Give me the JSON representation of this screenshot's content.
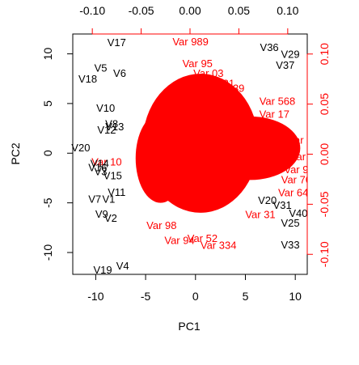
{
  "chart_data": {
    "type": "scatter",
    "plot": "biplot",
    "title": "",
    "xlabel": "PC1",
    "ylabel": "PC2",
    "xlim": [
      -12.3,
      11.2
    ],
    "ylim": [
      -12.2,
      12.0
    ],
    "x_ticks": [
      "-10",
      "-5",
      "0",
      "5",
      "10"
    ],
    "x_tick_values": [
      -10,
      -5,
      0,
      5,
      10
    ],
    "y_ticks": [
      "-10",
      "-5",
      "0",
      "5",
      "10"
    ],
    "y_tick_values": [
      -10,
      -5,
      0,
      5,
      10
    ],
    "loading_lim": [
      -0.12,
      0.12
    ],
    "top_ticks": [
      "-0.10",
      "-0.05",
      "0.00",
      "0.05",
      "0.10"
    ],
    "top_tick_values": [
      -0.1,
      -0.05,
      0,
      0.05,
      0.1
    ],
    "right_ticks": [
      "-0.10",
      "-0.05",
      "0.00",
      "0.05",
      "0.10"
    ],
    "right_tick_values": [
      -0.1,
      -0.05,
      0,
      0.05,
      0.1
    ],
    "colors": {
      "observations": "#000000",
      "variables": "#ff0000",
      "axes": "#000000",
      "top_right_axes": "#ff0000"
    },
    "observations": [
      {
        "label": "V17",
        "x": -7.9,
        "y": 11.2
      },
      {
        "label": "V36",
        "x": 7.4,
        "y": 10.7
      },
      {
        "label": "V29",
        "x": 9.5,
        "y": 10.0
      },
      {
        "label": "V37",
        "x": 9.0,
        "y": 8.9
      },
      {
        "label": "V5",
        "x": -9.5,
        "y": 8.6
      },
      {
        "label": "V6",
        "x": -7.6,
        "y": 8.1
      },
      {
        "label": "V18",
        "x": -10.8,
        "y": 7.5
      },
      {
        "label": "V10",
        "x": -9.0,
        "y": 4.6
      },
      {
        "label": "V8",
        "x": -8.4,
        "y": 3.0
      },
      {
        "label": "V13",
        "x": -8.1,
        "y": 2.7
      },
      {
        "label": "V12",
        "x": -8.9,
        "y": 2.4
      },
      {
        "label": "V20",
        "x": -11.5,
        "y": 0.6
      },
      {
        "label": "V14",
        "x": -9.6,
        "y": -1.0
      },
      {
        "label": "V16",
        "x": -9.8,
        "y": -1.4
      },
      {
        "label": "V3",
        "x": -9.5,
        "y": -1.8
      },
      {
        "label": "V15",
        "x": -8.3,
        "y": -2.2
      },
      {
        "label": "V11",
        "x": -7.9,
        "y": -3.9
      },
      {
        "label": "V7",
        "x": -10.1,
        "y": -4.6
      },
      {
        "label": "V1",
        "x": -8.7,
        "y": -4.6
      },
      {
        "label": "V20",
        "x": 7.2,
        "y": -4.7
      },
      {
        "label": "V31",
        "x": 8.7,
        "y": -5.2
      },
      {
        "label": "V9",
        "x": -9.4,
        "y": -6.1
      },
      {
        "label": "V2",
        "x": -8.5,
        "y": -6.5
      },
      {
        "label": "V40",
        "x": 10.3,
        "y": -6.0
      },
      {
        "label": "V25",
        "x": 9.5,
        "y": -7.0
      },
      {
        "label": "V33",
        "x": 9.5,
        "y": -9.2
      },
      {
        "label": "V19",
        "x": -9.3,
        "y": -11.7
      },
      {
        "label": "V4",
        "x": -7.3,
        "y": -11.3
      }
    ],
    "variables": [
      {
        "label": "Var 989",
        "x": -0.5,
        "y": 11.2
      },
      {
        "label": "Var 95",
        "x": 0.2,
        "y": 9.0
      },
      {
        "label": "Var 03",
        "x": 1.3,
        "y": 8.0
      },
      {
        "label": "Var 21",
        "x": 2.4,
        "y": 7.0
      },
      {
        "label": "Var 39",
        "x": 3.4,
        "y": 6.5
      },
      {
        "label": "Var 568",
        "x": 8.2,
        "y": 5.2
      },
      {
        "label": "Var 17",
        "x": 7.9,
        "y": 3.9
      },
      {
        "label": "Var 5",
        "x": 10.5,
        "y": 1.3
      },
      {
        "label": "Var 2",
        "x": 10.7,
        "y": -0.4
      },
      {
        "label": "Var 9",
        "x": 10.1,
        "y": -1.7
      },
      {
        "label": "Var 70",
        "x": 10.1,
        "y": -2.7
      },
      {
        "label": "Var 64",
        "x": 9.8,
        "y": -4.0
      },
      {
        "label": "Var 31",
        "x": 6.5,
        "y": -6.2
      },
      {
        "label": "Var 334",
        "x": 2.3,
        "y": -9.3
      },
      {
        "label": "Var 52",
        "x": 0.7,
        "y": -8.6
      },
      {
        "label": "Var 98",
        "x": -3.4,
        "y": -7.3
      },
      {
        "label": "Var 94",
        "x": -1.6,
        "y": -8.8
      },
      {
        "label": "Var 10",
        "x": -8.9,
        "y": -0.9
      }
    ]
  }
}
